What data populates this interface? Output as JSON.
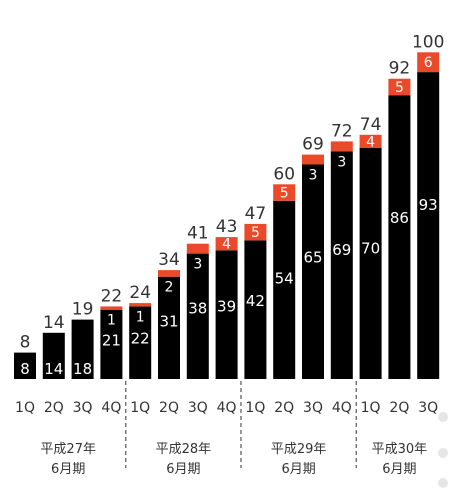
{
  "colors": {
    "base": "#000000",
    "increment": "#ea4a2a",
    "value_text": "#333333",
    "axis_text": "#333333",
    "inner_text": "#ffffff"
  },
  "chart_data": {
    "type": "bar",
    "stacked": true,
    "title": "",
    "xlabel": "",
    "ylabel": "",
    "ylim": [
      0,
      100
    ],
    "categories": [
      "1Q",
      "2Q",
      "3Q",
      "4Q",
      "1Q",
      "2Q",
      "3Q",
      "4Q",
      "1Q",
      "2Q",
      "3Q",
      "4Q",
      "1Q",
      "2Q",
      "3Q"
    ],
    "groups": [
      {
        "label_line1": "平成27年",
        "label_line2": "6月期",
        "start": 0,
        "end": 3
      },
      {
        "label_line1": "平成28年",
        "label_line2": "6月期",
        "start": 4,
        "end": 7
      },
      {
        "label_line1": "平成29年",
        "label_line2": "6月期",
        "start": 8,
        "end": 11
      },
      {
        "label_line1": "平成30年",
        "label_line2": "6月期",
        "start": 12,
        "end": 14
      }
    ],
    "series": [
      {
        "values": [
          8,
          14,
          18,
          21,
          22,
          31,
          38,
          39,
          42,
          54,
          65,
          69,
          70,
          86,
          93
        ]
      },
      {
        "values": [
          0,
          0,
          0,
          1,
          1,
          2,
          3,
          4,
          5,
          5,
          3,
          3,
          4,
          5,
          6
        ]
      }
    ],
    "increment_labels": [
      "",
      "",
      "",
      "1",
      "1",
      "2",
      "3",
      "4",
      "5",
      "5",
      "3",
      "3",
      "4",
      "5",
      "6"
    ],
    "totals": [
      8,
      14,
      19,
      22,
      24,
      34,
      41,
      43,
      47,
      60,
      69,
      72,
      74,
      92,
      100
    ],
    "grid": false,
    "legend": "none"
  }
}
